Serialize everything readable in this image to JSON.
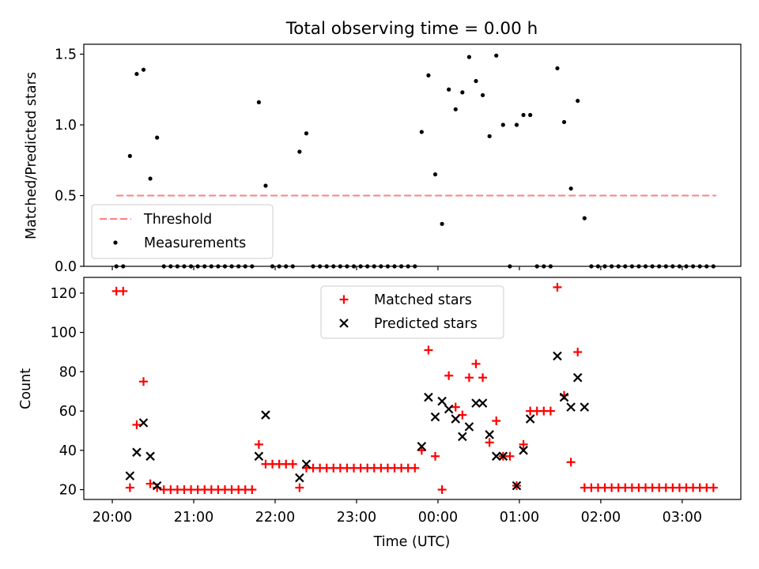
{
  "chart_data": [
    {
      "type": "scatter",
      "title": "Total observing time = 0.00 h",
      "ylabel": "Matched/Predicted stars",
      "ylim": [
        0,
        1.57
      ],
      "xlim_hours": [
        19.65,
        27.72
      ],
      "yticks": [
        0,
        0.5,
        1.0,
        1.5
      ],
      "ytick_labels": [
        "0.0",
        "0.5",
        "1.0",
        "1.5"
      ],
      "legend_location": "lower left",
      "threshold": {
        "name": "Threshold",
        "value": 0.5,
        "x_range": [
          "20:03",
          "03:25"
        ],
        "color": "#ff7f7f",
        "style": "dashed"
      },
      "series": [
        {
          "name": "Measurements",
          "color": "#000000",
          "marker": "dot",
          "points": [
            [
              "20:03",
              0
            ],
            [
              "20:08",
              0
            ],
            [
              "20:13",
              0.78
            ],
            [
              "20:18",
              1.36
            ],
            [
              "20:23",
              1.39
            ],
            [
              "20:28",
              0.62
            ],
            [
              "20:33",
              0.91
            ],
            [
              "20:38",
              0
            ],
            [
              "20:43",
              0
            ],
            [
              "20:48",
              0
            ],
            [
              "20:53",
              0
            ],
            [
              "20:58",
              0
            ],
            [
              "21:03",
              0
            ],
            [
              "21:08",
              0
            ],
            [
              "21:13",
              0
            ],
            [
              "21:18",
              0
            ],
            [
              "21:23",
              0
            ],
            [
              "21:28",
              0
            ],
            [
              "21:33",
              0
            ],
            [
              "21:38",
              0
            ],
            [
              "21:43",
              0
            ],
            [
              "21:48",
              1.16
            ],
            [
              "21:53",
              0.57
            ],
            [
              "21:58",
              0
            ],
            [
              "22:03",
              0
            ],
            [
              "22:08",
              0
            ],
            [
              "22:13",
              0
            ],
            [
              "22:18",
              0.81
            ],
            [
              "22:23",
              0.94
            ],
            [
              "22:28",
              0
            ],
            [
              "22:33",
              0
            ],
            [
              "22:38",
              0
            ],
            [
              "22:43",
              0
            ],
            [
              "22:48",
              0
            ],
            [
              "22:53",
              0
            ],
            [
              "22:58",
              0
            ],
            [
              "23:03",
              0
            ],
            [
              "23:08",
              0
            ],
            [
              "23:13",
              0
            ],
            [
              "23:18",
              0
            ],
            [
              "23:23",
              0
            ],
            [
              "23:28",
              0
            ],
            [
              "23:33",
              0
            ],
            [
              "23:38",
              0
            ],
            [
              "23:43",
              0
            ],
            [
              "23:48",
              0.95
            ],
            [
              "23:53",
              1.35
            ],
            [
              "23:58",
              0.65
            ],
            [
              "00:03",
              0.3
            ],
            [
              "00:08",
              1.25
            ],
            [
              "00:13",
              1.11
            ],
            [
              "00:18",
              1.23
            ],
            [
              "00:23",
              1.48
            ],
            [
              "00:28",
              1.31
            ],
            [
              "00:33",
              1.21
            ],
            [
              "00:38",
              0.92
            ],
            [
              "00:43",
              1.49
            ],
            [
              "00:48",
              1.0
            ],
            [
              "00:53",
              0
            ],
            [
              "00:58",
              1.0
            ],
            [
              "01:03",
              1.07
            ],
            [
              "01:08",
              1.07
            ],
            [
              "01:13",
              0
            ],
            [
              "01:18",
              0
            ],
            [
              "01:23",
              0
            ],
            [
              "01:28",
              1.4
            ],
            [
              "01:33",
              1.02
            ],
            [
              "01:38",
              0.55
            ],
            [
              "01:43",
              1.17
            ],
            [
              "01:48",
              0.34
            ],
            [
              "01:53",
              0
            ],
            [
              "01:58",
              0
            ],
            [
              "02:03",
              0
            ],
            [
              "02:08",
              0
            ],
            [
              "02:13",
              0
            ],
            [
              "02:18",
              0
            ],
            [
              "02:23",
              0
            ],
            [
              "02:28",
              0
            ],
            [
              "02:33",
              0
            ],
            [
              "02:38",
              0
            ],
            [
              "02:43",
              0
            ],
            [
              "02:48",
              0
            ],
            [
              "02:53",
              0
            ],
            [
              "02:58",
              0
            ],
            [
              "03:03",
              0
            ],
            [
              "03:08",
              0
            ],
            [
              "03:13",
              0
            ],
            [
              "03:18",
              0
            ],
            [
              "03:23",
              0
            ]
          ]
        }
      ]
    },
    {
      "type": "scatter",
      "xlabel": "Time (UTC)",
      "ylabel": "Count",
      "ylim": [
        15,
        128
      ],
      "xlim_hours": [
        19.65,
        27.72
      ],
      "yticks": [
        20,
        40,
        60,
        80,
        100,
        120
      ],
      "ytick_labels": [
        "20",
        "40",
        "60",
        "80",
        "100",
        "120"
      ],
      "xticks_hours": [
        20,
        21,
        22,
        23,
        24,
        25,
        26,
        27
      ],
      "xtick_labels": [
        "20:00",
        "21:00",
        "22:00",
        "23:00",
        "00:00",
        "01:00",
        "02:00",
        "03:00"
      ],
      "legend_location": "upper center",
      "series": [
        {
          "name": "Matched stars",
          "color": "#ff0000",
          "marker": "plus",
          "points": [
            [
              "20:03",
              121
            ],
            [
              "20:08",
              121
            ],
            [
              "20:13",
              21
            ],
            [
              "20:18",
              53
            ],
            [
              "20:23",
              75
            ],
            [
              "20:28",
              23
            ],
            [
              "20:33",
              21
            ],
            [
              "20:38",
              20
            ],
            [
              "20:43",
              20
            ],
            [
              "20:48",
              20
            ],
            [
              "20:53",
              20
            ],
            [
              "20:58",
              20
            ],
            [
              "21:03",
              20
            ],
            [
              "21:08",
              20
            ],
            [
              "21:13",
              20
            ],
            [
              "21:18",
              20
            ],
            [
              "21:23",
              20
            ],
            [
              "21:28",
              20
            ],
            [
              "21:33",
              20
            ],
            [
              "21:38",
              20
            ],
            [
              "21:43",
              20
            ],
            [
              "21:48",
              43
            ],
            [
              "21:53",
              33
            ],
            [
              "21:58",
              33
            ],
            [
              "22:03",
              33
            ],
            [
              "22:08",
              33
            ],
            [
              "22:13",
              33
            ],
            [
              "22:18",
              21
            ],
            [
              "22:23",
              31
            ],
            [
              "22:28",
              31
            ],
            [
              "22:33",
              31
            ],
            [
              "22:38",
              31
            ],
            [
              "22:43",
              31
            ],
            [
              "22:48",
              31
            ],
            [
              "22:53",
              31
            ],
            [
              "22:58",
              31
            ],
            [
              "23:03",
              31
            ],
            [
              "23:08",
              31
            ],
            [
              "23:13",
              31
            ],
            [
              "23:18",
              31
            ],
            [
              "23:23",
              31
            ],
            [
              "23:28",
              31
            ],
            [
              "23:33",
              31
            ],
            [
              "23:38",
              31
            ],
            [
              "23:43",
              31
            ],
            [
              "23:48",
              40
            ],
            [
              "23:53",
              91
            ],
            [
              "23:58",
              37
            ],
            [
              "00:03",
              20
            ],
            [
              "00:08",
              78
            ],
            [
              "00:13",
              62
            ],
            [
              "00:18",
              58
            ],
            [
              "00:23",
              77
            ],
            [
              "00:28",
              84
            ],
            [
              "00:33",
              77
            ],
            [
              "00:38",
              44
            ],
            [
              "00:43",
              55
            ],
            [
              "00:48",
              37
            ],
            [
              "00:53",
              37
            ],
            [
              "00:58",
              22
            ],
            [
              "01:03",
              43
            ],
            [
              "01:08",
              60
            ],
            [
              "01:13",
              60
            ],
            [
              "01:18",
              60
            ],
            [
              "01:23",
              60
            ],
            [
              "01:28",
              123
            ],
            [
              "01:33",
              68
            ],
            [
              "01:38",
              34
            ],
            [
              "01:43",
              90
            ],
            [
              "01:48",
              21
            ],
            [
              "01:53",
              21
            ],
            [
              "01:58",
              21
            ],
            [
              "02:03",
              21
            ],
            [
              "02:08",
              21
            ],
            [
              "02:13",
              21
            ],
            [
              "02:18",
              21
            ],
            [
              "02:23",
              21
            ],
            [
              "02:28",
              21
            ],
            [
              "02:33",
              21
            ],
            [
              "02:38",
              21
            ],
            [
              "02:43",
              21
            ],
            [
              "02:48",
              21
            ],
            [
              "02:53",
              21
            ],
            [
              "02:58",
              21
            ],
            [
              "03:03",
              21
            ],
            [
              "03:08",
              21
            ],
            [
              "03:13",
              21
            ],
            [
              "03:18",
              21
            ],
            [
              "03:23",
              21
            ]
          ]
        },
        {
          "name": "Predicted stars",
          "color": "#000000",
          "marker": "x",
          "points": [
            [
              "20:13",
              27
            ],
            [
              "20:18",
              39
            ],
            [
              "20:23",
              54
            ],
            [
              "20:28",
              37
            ],
            [
              "20:33",
              22
            ],
            [
              "21:48",
              37
            ],
            [
              "21:53",
              58
            ],
            [
              "22:18",
              26
            ],
            [
              "22:23",
              33
            ],
            [
              "23:48",
              42
            ],
            [
              "23:53",
              67
            ],
            [
              "23:58",
              57
            ],
            [
              "00:03",
              65
            ],
            [
              "00:08",
              61
            ],
            [
              "00:13",
              56
            ],
            [
              "00:18",
              47
            ],
            [
              "00:23",
              52
            ],
            [
              "00:28",
              64
            ],
            [
              "00:33",
              64
            ],
            [
              "00:38",
              48
            ],
            [
              "00:43",
              37
            ],
            [
              "00:48",
              37
            ],
            [
              "00:58",
              22
            ],
            [
              "01:03",
              40
            ],
            [
              "01:08",
              56
            ],
            [
              "01:28",
              88
            ],
            [
              "01:33",
              67
            ],
            [
              "01:38",
              62
            ],
            [
              "01:43",
              77
            ],
            [
              "01:48",
              62
            ]
          ]
        }
      ]
    }
  ]
}
